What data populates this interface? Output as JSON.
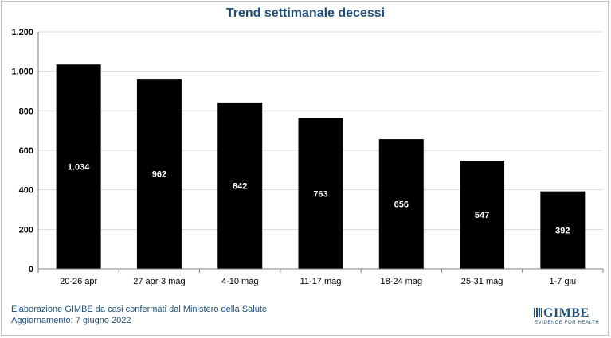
{
  "chart_data": {
    "type": "bar",
    "title": "Trend settimanale decessi",
    "categories": [
      "20-26 apr",
      "27 apr-3 mag",
      "4-10 mag",
      "11-17 mag",
      "18-24 mag",
      "25-31 mag",
      "1-7 giu"
    ],
    "values": [
      1034,
      962,
      842,
      763,
      656,
      547,
      392
    ],
    "value_labels": [
      "1.034",
      "962",
      "842",
      "763",
      "656",
      "547",
      "392"
    ],
    "ylim": [
      0,
      1200
    ],
    "yticks": [
      0,
      200,
      400,
      600,
      800,
      1000,
      1200
    ],
    "ytick_labels": [
      "0",
      "200",
      "400",
      "600",
      "800",
      "1.000",
      "1.200"
    ],
    "grid": true,
    "bar_color": "#000000",
    "label_color": "#ffffff"
  },
  "footer": {
    "line1": "Elaborazione GIMBE da casi confermati dal Ministero della Salute",
    "line2": "Aggiornamento: 7 giugno 2022"
  },
  "logo": {
    "word": "GIMBE",
    "tagline": "EVIDENCE FOR HEALTH"
  },
  "colors": {
    "title": "#1f4e79",
    "footer": "#1f4e79",
    "gridline": "#d9d9d9"
  }
}
